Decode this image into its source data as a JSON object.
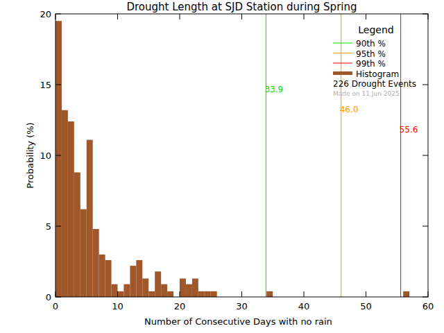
{
  "chart_data": {
    "type": "histogram",
    "title": "Drought Length at SJD Station during Spring",
    "x_label": "Number of Consecutive Days with no rain",
    "y_label": "Probability (%)",
    "bins": [
      0,
      1,
      2,
      3,
      4,
      5,
      6,
      7,
      8,
      9,
      10,
      11,
      12,
      13,
      14,
      15,
      16,
      17,
      18,
      19,
      20,
      21,
      22,
      23,
      24,
      25,
      26,
      27,
      28,
      29,
      30,
      31,
      32,
      33,
      34,
      35,
      36,
      37,
      38,
      39,
      40,
      41,
      42,
      43,
      44,
      45,
      46,
      47,
      48,
      49,
      50,
      51,
      52,
      53,
      54,
      55,
      56,
      57,
      58
    ],
    "series": [
      {
        "name": "Histogram",
        "color": "#a0582a",
        "values": [
          19.5,
          13.2,
          12.4,
          8.8,
          6.2,
          11.1,
          4.8,
          3.0,
          2.6,
          0.9,
          0.4,
          0.9,
          2.2,
          2.6,
          1.3,
          0.4,
          1.8,
          0.9,
          0.4,
          0,
          1.3,
          0.9,
          1.3,
          0.4,
          0.4,
          0.4,
          0,
          0,
          0,
          0,
          0,
          0,
          0,
          0,
          0.4,
          0,
          0,
          0,
          0,
          0,
          0,
          0,
          0,
          0,
          0,
          0,
          0,
          0,
          0,
          0,
          0,
          0,
          0,
          0,
          0,
          0,
          0.4,
          0
        ]
      }
    ],
    "reference_lines": [
      {
        "name": "90th %",
        "value": 33.9,
        "label": "33.9",
        "color": "#00e000"
      },
      {
        "name": "95th %",
        "value": 46.0,
        "label": "46.0",
        "color": "#ff9900"
      },
      {
        "name": "99th %",
        "value": 55.6,
        "label": "55.6",
        "color": "#ff0000"
      }
    ],
    "legend_title": "Legend",
    "events_label": "226 Drought Events",
    "made_on": "Made on 11 Jun 2025",
    "legend": "top-right",
    "xlim": [
      0,
      60
    ],
    "ylim": [
      0,
      20
    ],
    "xticks": [
      0,
      10,
      20,
      30,
      40,
      50,
      60
    ],
    "yticks": [
      0,
      5,
      10,
      15,
      20
    ],
    "grid": false
  }
}
